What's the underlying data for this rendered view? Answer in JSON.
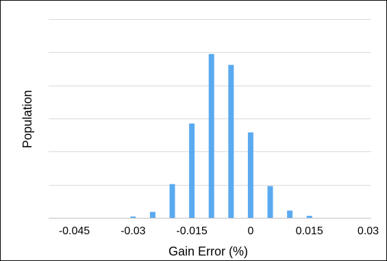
{
  "chart_data": {
    "type": "bar",
    "title": "",
    "xlabel": "Gain Error (%)",
    "ylabel": "Population",
    "x": [
      -0.045,
      -0.04,
      -0.035,
      -0.03,
      -0.025,
      -0.02,
      -0.015,
      -0.01,
      -0.005,
      0,
      0.005,
      0.01,
      0.015,
      0.02,
      0.025,
      0.03
    ],
    "values": [
      0,
      0,
      0,
      0.4,
      1.8,
      10.2,
      28.5,
      49.5,
      46.2,
      25.8,
      9.6,
      2.2,
      0.6,
      0,
      0,
      0
    ],
    "x_ticks": [
      -0.045,
      -0.03,
      -0.015,
      0,
      0.015,
      0.03
    ],
    "x_tick_labels": [
      "-0.045",
      "-0.03",
      "-0.015",
      "0",
      "0.015",
      "0.03"
    ],
    "ylim": [
      0,
      60
    ],
    "y_gridlines": [
      0,
      10,
      20,
      30,
      40,
      50,
      60
    ],
    "y_tick_labels_shown": false,
    "grid": true,
    "legend": "none",
    "bar_color": "#5aaaf0",
    "grid_color": "#d9d9d9",
    "axis_color": "#bfbfbf"
  }
}
